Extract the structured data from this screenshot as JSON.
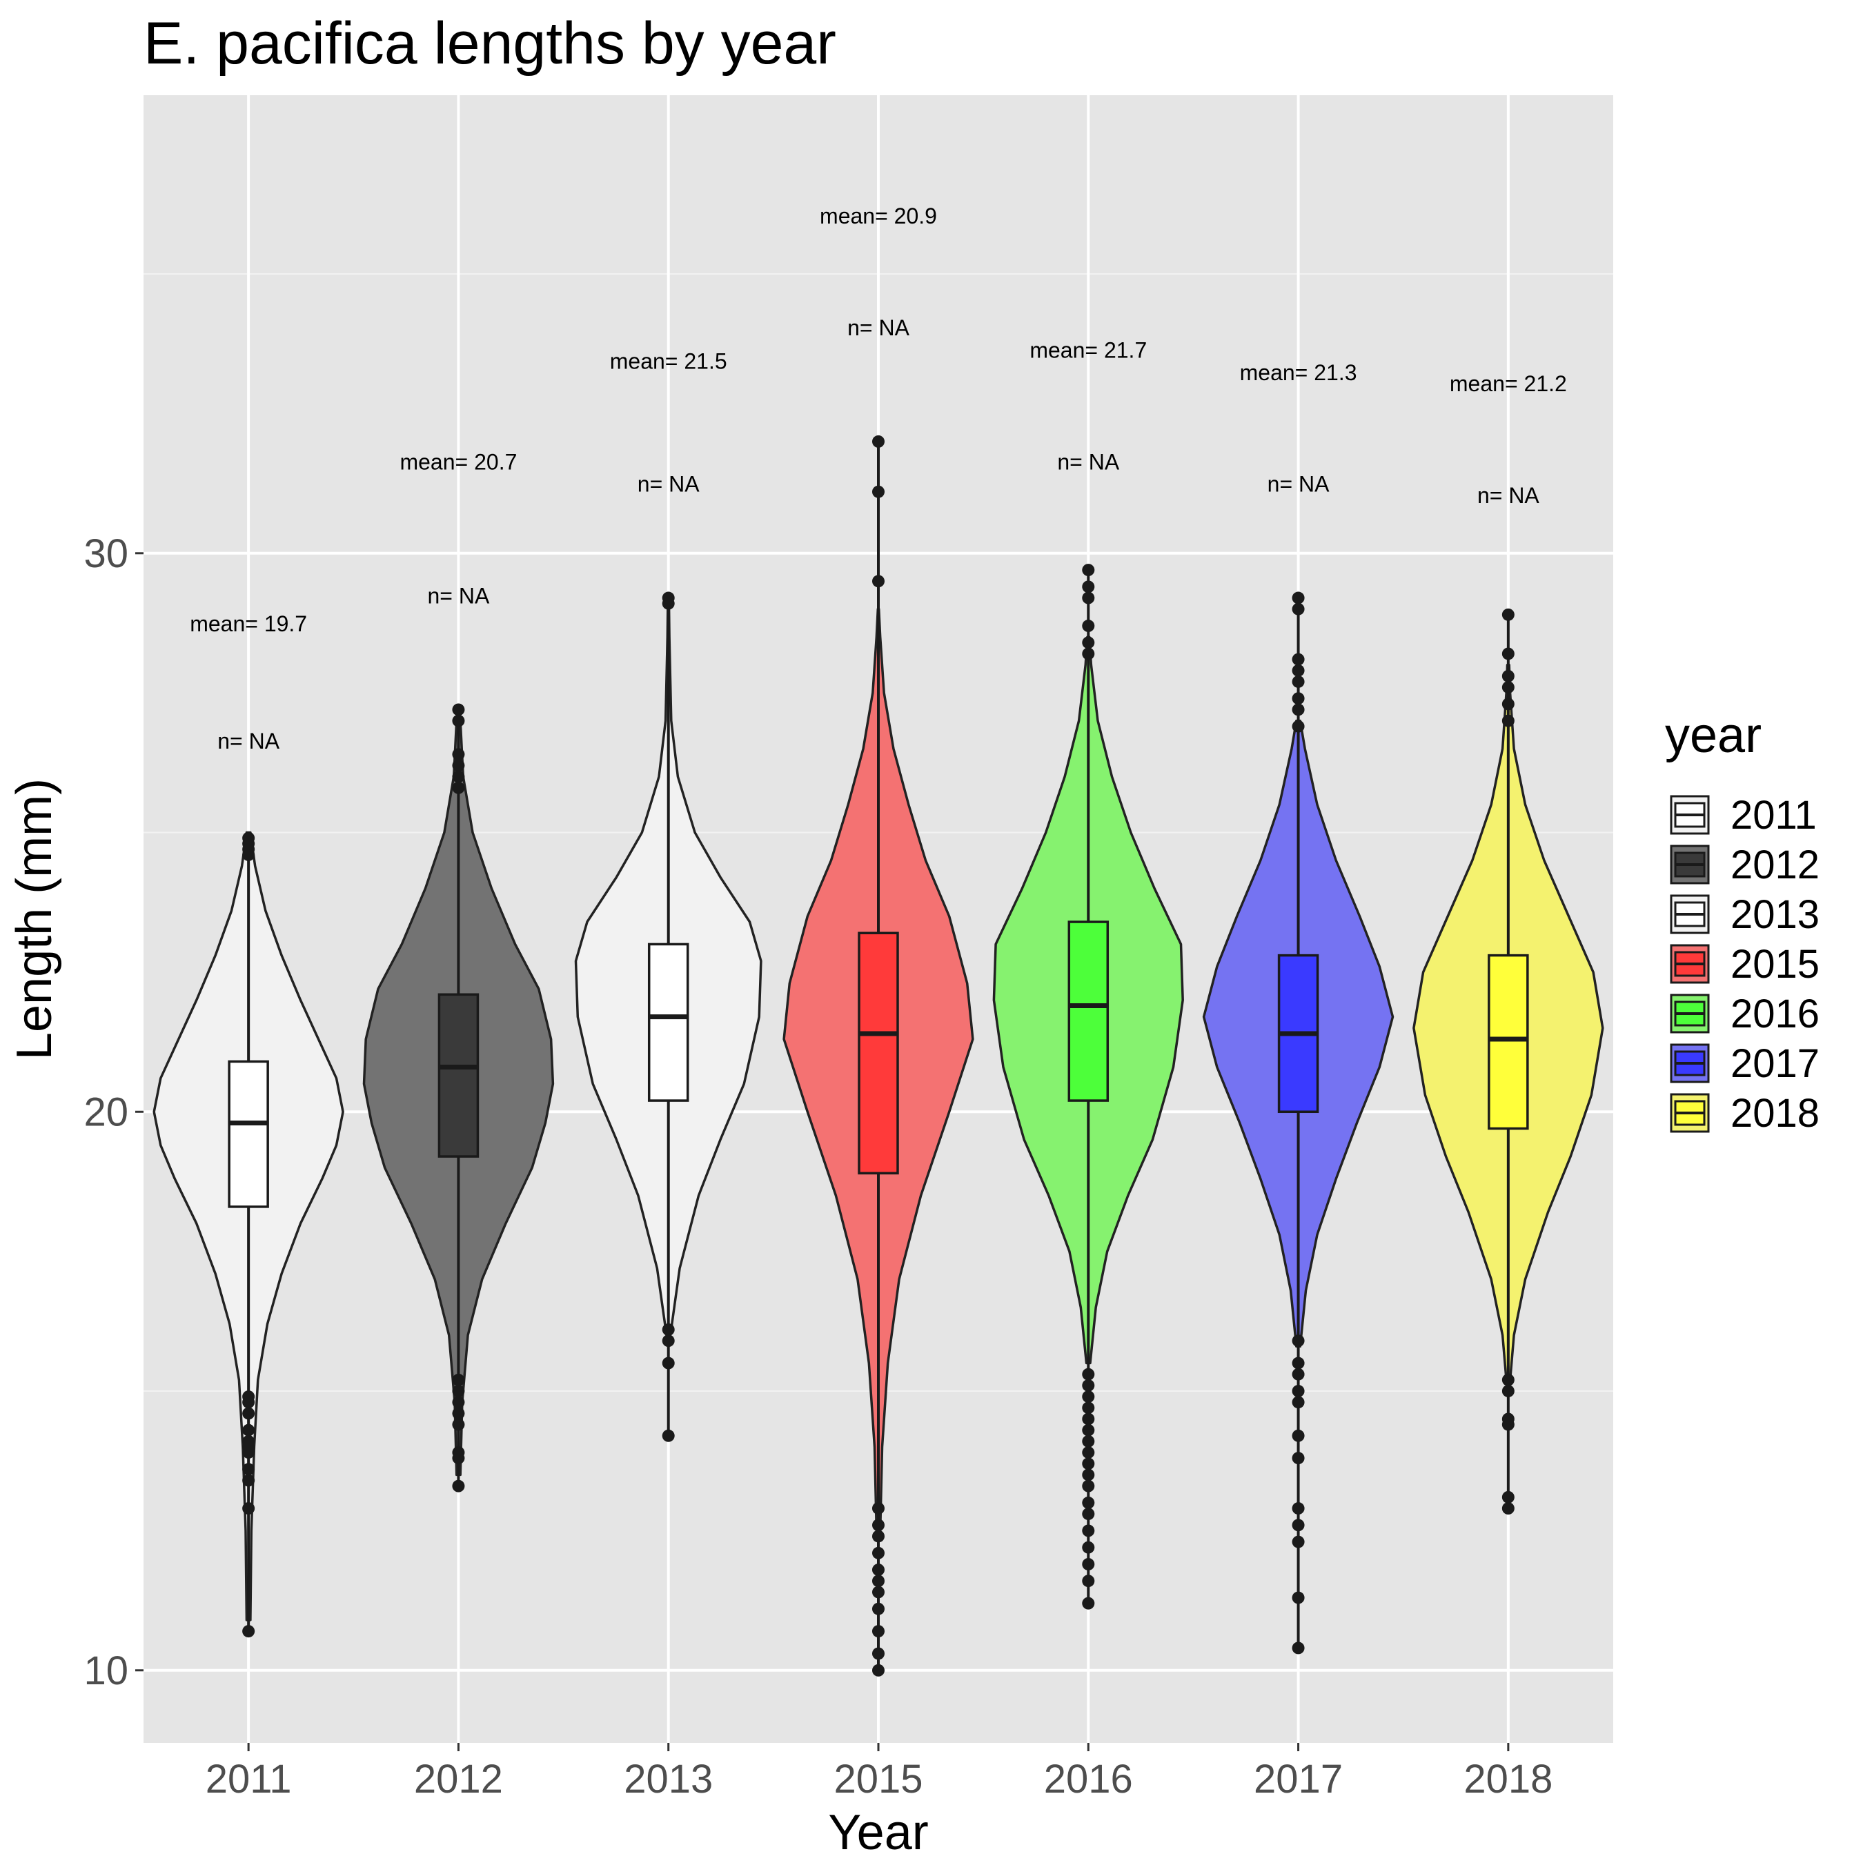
{
  "chart_data": {
    "type": "violin",
    "title": "E. pacifica lengths by year",
    "xlabel": "Year",
    "ylabel": "Length (mm)",
    "ylim": [
      8.7,
      38.2
    ],
    "yticks": [
      10,
      20,
      30
    ],
    "grid": true,
    "legend": {
      "title": "year",
      "position": "right"
    },
    "categories": [
      "2011",
      "2012",
      "2013",
      "2015",
      "2016",
      "2017",
      "2018"
    ],
    "series": [
      {
        "name": "2011",
        "color": "#f2f2f2",
        "box_color": "#ffffff",
        "mean_label": "mean= 19.7",
        "n_label": "n= NA",
        "mean_label_y": 28.6,
        "n_label_y": 26.5,
        "box": {
          "q1": 18.3,
          "median": 19.8,
          "q3": 20.9
        },
        "whisker": [
          10.7,
          24.9
        ],
        "violin": [
          [
            10.9,
            0.02
          ],
          [
            12.5,
            0.03
          ],
          [
            14.0,
            0.06
          ],
          [
            15.2,
            0.1
          ],
          [
            16.2,
            0.2
          ],
          [
            17.1,
            0.35
          ],
          [
            18.0,
            0.55
          ],
          [
            18.8,
            0.78
          ],
          [
            19.4,
            0.93
          ],
          [
            20.0,
            1.0
          ],
          [
            20.6,
            0.93
          ],
          [
            21.3,
            0.74
          ],
          [
            22.0,
            0.55
          ],
          [
            22.8,
            0.35
          ],
          [
            23.6,
            0.18
          ],
          [
            24.4,
            0.07
          ],
          [
            25.0,
            0.02
          ]
        ],
        "outliers": [
          10.7,
          12.9,
          13.4,
          13.6,
          13.9,
          14.0,
          14.1,
          14.3,
          14.6,
          14.8,
          14.9,
          24.6,
          24.7,
          24.8,
          24.9
        ]
      },
      {
        "name": "2012",
        "color": "#737373",
        "box_color": "#3a3a3a",
        "mean_label": "mean= 20.7",
        "n_label": "n= NA",
        "mean_label_y": 31.5,
        "n_label_y": 29.1,
        "box": {
          "q1": 19.2,
          "median": 20.8,
          "q3": 22.1
        },
        "whisker": [
          13.3,
          27.3
        ],
        "violin": [
          [
            13.5,
            0.02
          ],
          [
            14.8,
            0.04
          ],
          [
            16.0,
            0.1
          ],
          [
            17.0,
            0.25
          ],
          [
            18.0,
            0.5
          ],
          [
            19.0,
            0.78
          ],
          [
            19.8,
            0.92
          ],
          [
            20.5,
            1.0
          ],
          [
            21.3,
            0.98
          ],
          [
            22.2,
            0.85
          ],
          [
            23.0,
            0.6
          ],
          [
            24.0,
            0.35
          ],
          [
            25.0,
            0.15
          ],
          [
            26.0,
            0.05
          ],
          [
            27.0,
            0.02
          ]
        ],
        "outliers": [
          13.3,
          13.8,
          13.9,
          14.4,
          14.6,
          14.8,
          15.0,
          15.2,
          25.8,
          26.0,
          26.2,
          26.4,
          27.0,
          27.2
        ]
      },
      {
        "name": "2013",
        "color": "#f2f2f2",
        "box_color": "#ffffff",
        "mean_label": "mean= 21.5",
        "n_label": "n= NA",
        "mean_label_y": 33.3,
        "n_label_y": 31.1,
        "box": {
          "q1": 20.2,
          "median": 21.7,
          "q3": 23.0
        },
        "whisker": [
          14.2,
          29.2
        ],
        "violin": [
          [
            16.0,
            0.02
          ],
          [
            17.2,
            0.12
          ],
          [
            18.5,
            0.32
          ],
          [
            19.5,
            0.55
          ],
          [
            20.5,
            0.8
          ],
          [
            21.7,
            0.96
          ],
          [
            22.7,
            0.98
          ],
          [
            23.4,
            0.86
          ],
          [
            24.2,
            0.55
          ],
          [
            25.0,
            0.28
          ],
          [
            26.0,
            0.1
          ],
          [
            27.0,
            0.03
          ],
          [
            28.5,
            0.01
          ],
          [
            29.2,
            0.005
          ]
        ],
        "outliers": [
          14.2,
          15.5,
          15.9,
          16.1,
          29.1,
          29.2
        ]
      },
      {
        "name": "2015",
        "color": "#f47272",
        "box_color": "#ff3a3a",
        "mean_label": "mean= 20.9",
        "n_label": "n= NA",
        "mean_label_y": 35.9,
        "n_label_y": 33.9,
        "box": {
          "q1": 18.9,
          "median": 21.4,
          "q3": 23.2
        },
        "whisker": [
          10.0,
          32.0
        ],
        "violin": [
          [
            12.5,
            0.02
          ],
          [
            14.0,
            0.04
          ],
          [
            15.5,
            0.1
          ],
          [
            17.0,
            0.22
          ],
          [
            18.5,
            0.45
          ],
          [
            20.0,
            0.75
          ],
          [
            21.3,
            1.0
          ],
          [
            22.3,
            0.94
          ],
          [
            23.5,
            0.75
          ],
          [
            24.5,
            0.5
          ],
          [
            25.5,
            0.32
          ],
          [
            26.5,
            0.16
          ],
          [
            27.5,
            0.06
          ],
          [
            28.5,
            0.02
          ],
          [
            29.0,
            0.005
          ]
        ],
        "outliers": [
          10.0,
          10.3,
          10.7,
          11.1,
          11.4,
          11.6,
          11.8,
          12.1,
          12.4,
          12.6,
          12.9,
          29.5,
          31.1,
          32.0
        ]
      },
      {
        "name": "2016",
        "color": "#86f26f",
        "box_color": "#4dff3a",
        "mean_label": "mean= 21.7",
        "n_label": "n= NA",
        "mean_label_y": 33.5,
        "n_label_y": 31.5,
        "box": {
          "q1": 20.2,
          "median": 21.9,
          "q3": 23.4
        },
        "whisker": [
          11.2,
          29.7
        ],
        "violin": [
          [
            15.5,
            0.02
          ],
          [
            16.5,
            0.08
          ],
          [
            17.5,
            0.2
          ],
          [
            18.5,
            0.42
          ],
          [
            19.5,
            0.68
          ],
          [
            20.8,
            0.9
          ],
          [
            22.0,
            1.0
          ],
          [
            23.0,
            0.98
          ],
          [
            24.0,
            0.7
          ],
          [
            25.0,
            0.45
          ],
          [
            26.0,
            0.25
          ],
          [
            27.0,
            0.1
          ],
          [
            28.0,
            0.03
          ],
          [
            28.5,
            0.01
          ]
        ],
        "outliers": [
          11.2,
          11.6,
          11.9,
          12.2,
          12.5,
          12.8,
          13.0,
          13.3,
          13.5,
          13.7,
          13.9,
          14.1,
          14.3,
          14.5,
          14.7,
          14.9,
          15.1,
          15.3,
          28.2,
          28.4,
          28.7,
          29.2,
          29.4,
          29.7
        ]
      },
      {
        "name": "2017",
        "color": "#7573f2",
        "box_color": "#3a3aff",
        "mean_label": "mean= 21.3",
        "n_label": "n= NA",
        "mean_label_y": 33.1,
        "n_label_y": 31.1,
        "box": {
          "q1": 20.0,
          "median": 21.4,
          "q3": 22.8
        },
        "whisker": [
          10.4,
          29.2
        ],
        "violin": [
          [
            15.8,
            0.02
          ],
          [
            16.8,
            0.08
          ],
          [
            17.8,
            0.2
          ],
          [
            18.8,
            0.4
          ],
          [
            19.8,
            0.62
          ],
          [
            20.8,
            0.86
          ],
          [
            21.7,
            1.0
          ],
          [
            22.6,
            0.86
          ],
          [
            23.5,
            0.65
          ],
          [
            24.5,
            0.4
          ],
          [
            25.5,
            0.2
          ],
          [
            26.5,
            0.07
          ],
          [
            27.0,
            0.02
          ]
        ],
        "outliers": [
          10.4,
          11.3,
          12.3,
          12.6,
          12.9,
          13.8,
          14.2,
          14.8,
          15.0,
          15.3,
          15.5,
          15.9,
          26.9,
          27.2,
          27.4,
          27.7,
          27.9,
          28.1,
          29.0,
          29.2
        ]
      },
      {
        "name": "2018",
        "color": "#f4f26f",
        "box_color": "#ffff3a",
        "mean_label": "mean= 21.2",
        "n_label": "n= NA",
        "mean_label_y": 32.9,
        "n_label_y": 30.9,
        "box": {
          "q1": 19.7,
          "median": 21.3,
          "q3": 22.8
        },
        "whisker": [
          12.9,
          28.9
        ],
        "violin": [
          [
            15.2,
            0.02
          ],
          [
            16.0,
            0.06
          ],
          [
            17.0,
            0.18
          ],
          [
            18.2,
            0.42
          ],
          [
            19.2,
            0.66
          ],
          [
            20.3,
            0.88
          ],
          [
            21.5,
            1.0
          ],
          [
            22.5,
            0.9
          ],
          [
            23.5,
            0.64
          ],
          [
            24.5,
            0.38
          ],
          [
            25.5,
            0.18
          ],
          [
            26.5,
            0.06
          ],
          [
            27.5,
            0.02
          ],
          [
            28.0,
            0.01
          ]
        ],
        "outliers": [
          12.9,
          13.1,
          14.4,
          14.5,
          15.0,
          15.2,
          27.0,
          27.3,
          27.6,
          27.8,
          28.2,
          28.9
        ]
      }
    ]
  }
}
